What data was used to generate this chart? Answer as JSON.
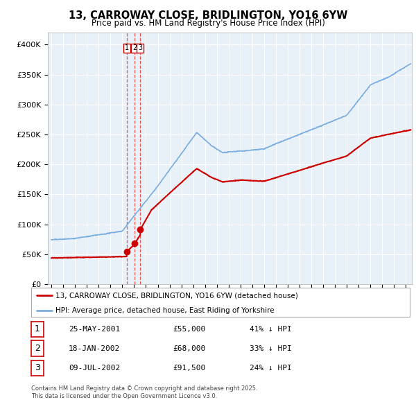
{
  "title": "13, CARROWAY CLOSE, BRIDLINGTON, YO16 6YW",
  "subtitle": "Price paid vs. HM Land Registry's House Price Index (HPI)",
  "legend_line1": "13, CARROWAY CLOSE, BRIDLINGTON, YO16 6YW (detached house)",
  "legend_line2": "HPI: Average price, detached house, East Riding of Yorkshire",
  "transactions": [
    {
      "num": 1,
      "date": "25-MAY-2001",
      "price": "£55,000",
      "pct": "41% ↓ HPI",
      "year": 2001.38
    },
    {
      "num": 2,
      "date": "18-JAN-2002",
      "price": "£68,000",
      "pct": "33% ↓ HPI",
      "year": 2002.05
    },
    {
      "num": 3,
      "date": "09-JUL-2002",
      "price": "£91,500",
      "pct": "24% ↓ HPI",
      "year": 2002.53
    }
  ],
  "footnote1": "Contains HM Land Registry data © Crown copyright and database right 2025.",
  "footnote2": "This data is licensed under the Open Government Licence v3.0.",
  "red_color": "#cc0000",
  "blue_color": "#7aade0",
  "blue_fill": "#ddeeff",
  "vline_color": "#ee4444",
  "background_color": "#ffffff",
  "plot_bg_color": "#e8f0f8",
  "grid_color": "#ffffff",
  "ylim": [
    0,
    420000
  ],
  "xlim_start": 1994.7,
  "xlim_end": 2025.5,
  "yticks": [
    0,
    50000,
    100000,
    150000,
    200000,
    250000,
    300000,
    350000,
    400000
  ],
  "ytick_labels": [
    "£0",
    "£50K",
    "£100K",
    "£150K",
    "£200K",
    "£250K",
    "£300K",
    "£350K",
    "£400K"
  ]
}
